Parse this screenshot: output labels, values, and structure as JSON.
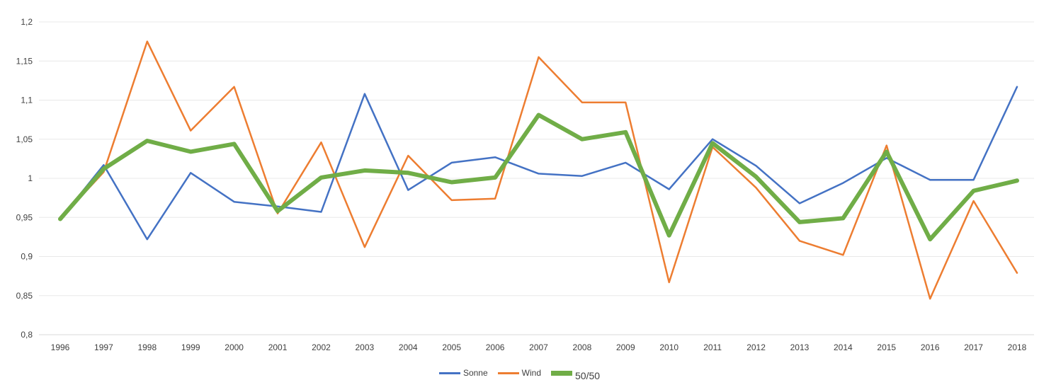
{
  "chart_data": {
    "type": "line",
    "title": "",
    "xlabel": "",
    "ylabel": "",
    "categories": [
      "1996",
      "1997",
      "1998",
      "1999",
      "2000",
      "2001",
      "2002",
      "2003",
      "2004",
      "2005",
      "2006",
      "2007",
      "2008",
      "2009",
      "2010",
      "2011",
      "2012",
      "2013",
      "2014",
      "2015",
      "2016",
      "2017",
      "2018"
    ],
    "ylim": [
      0.8,
      1.2
    ],
    "yticks": [
      0.8,
      0.85,
      0.9,
      0.95,
      1.0,
      1.05,
      1.1,
      1.15,
      1.2
    ],
    "ytick_labels": [
      "0,8",
      "0,85",
      "0,9",
      "0,95",
      "1",
      "1,05",
      "1,1",
      "1,15",
      "1,2"
    ],
    "grid": "horizontal",
    "legend_position": "bottom",
    "series": [
      {
        "name": "Sonne",
        "color": "#4472C4",
        "values": [
          0.948,
          1.017,
          0.922,
          1.007,
          0.97,
          0.964,
          0.957,
          1.108,
          0.985,
          1.02,
          1.027,
          1.006,
          1.003,
          1.02,
          0.986,
          1.05,
          1.016,
          0.968,
          0.994,
          1.026,
          0.998,
          0.998,
          1.117
        ]
      },
      {
        "name": "Wind",
        "color": "#ED7D31",
        "values": [
          0.948,
          1.008,
          1.175,
          1.061,
          1.117,
          0.955,
          1.046,
          0.912,
          1.029,
          0.972,
          0.974,
          1.155,
          1.097,
          1.097,
          0.867,
          1.04,
          0.988,
          0.92,
          0.902,
          1.042,
          0.846,
          0.971,
          0.879
        ]
      },
      {
        "name": "50/50",
        "color": "#70AD47",
        "values": [
          0.948,
          1.012,
          1.048,
          1.034,
          1.044,
          0.958,
          1.001,
          1.01,
          1.007,
          0.995,
          1.001,
          1.081,
          1.05,
          1.059,
          0.927,
          1.045,
          1.002,
          0.944,
          0.949,
          1.034,
          0.922,
          0.984,
          0.997
        ]
      }
    ]
  }
}
